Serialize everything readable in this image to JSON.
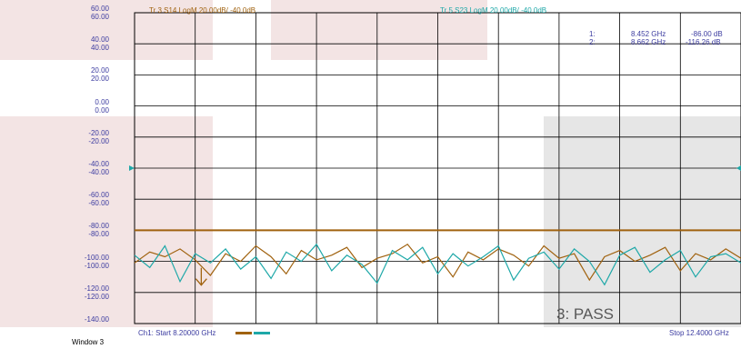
{
  "chart_data": {
    "type": "line",
    "trace_labels": [
      {
        "text": "Tr 3  S14 LogM 20.00dB/  -40.0dB",
        "color": "#a0620f"
      },
      {
        "text": "Tr 5  S23 LogM 20.00dB/  -40.0dB",
        "color": "#1ea8a8"
      }
    ],
    "y_ticks_trace_a": [
      "60.00",
      "40.00",
      "20.00",
      "0.00",
      "-20.00",
      "-40.00",
      "-60.00",
      "-80.00",
      "-100.00",
      "-120.00",
      "-140.00"
    ],
    "y_ticks_trace_b": [
      "60.00",
      "40.00",
      "20.00",
      "0.00",
      "-20.00",
      "-40.00",
      "-60.00",
      "-80.00",
      "-100.00",
      "-120.00"
    ],
    "ylim": [
      -140,
      60
    ],
    "xlim_ghz": [
      8.2,
      12.4
    ],
    "limit_line_db": -80,
    "reference_marker_db": -40,
    "marker_readouts": [
      {
        "id": "1:",
        "freq": "8.452 GHz",
        "value": "-86.00 dB"
      },
      {
        "id": "2:",
        "freq": "8.662 GHz",
        "value": "-116.26 dB"
      }
    ],
    "marker_down_freq_ghz": 8.662,
    "series": [
      {
        "color": "#a0620f",
        "x_start": 8.2,
        "x_step": 0.105,
        "values": [
          -101,
          -94,
          -97,
          -92,
          -99,
          -109,
          -95,
          -100,
          -90,
          -97,
          -108,
          -93,
          -99,
          -96,
          -91,
          -104,
          -98,
          -95,
          -89,
          -101,
          -97,
          -110,
          -94,
          -99,
          -92,
          -96,
          -103,
          -90,
          -98,
          -95,
          -112,
          -97,
          -93,
          -100,
          -96,
          -91,
          -106,
          -95,
          -99,
          -92,
          -98
        ]
      },
      {
        "color": "#1ea8a8",
        "x_start": 8.2,
        "x_step": 0.105,
        "values": [
          -96,
          -104,
          -90,
          -113,
          -95,
          -101,
          -92,
          -105,
          -97,
          -111,
          -94,
          -100,
          -89,
          -106,
          -96,
          -102,
          -114,
          -93,
          -99,
          -91,
          -108,
          -95,
          -103,
          -97,
          -90,
          -112,
          -98,
          -94,
          -105,
          -92,
          -100,
          -115,
          -96,
          -91,
          -107,
          -99,
          -93,
          -110,
          -97,
          -95,
          -101
        ]
      }
    ],
    "footer_start": "Ch1:  Start  8.20000 GHz",
    "footer_stop": "Stop  12.4000 GHz",
    "status": "3: PASS",
    "window": "Window 3"
  }
}
